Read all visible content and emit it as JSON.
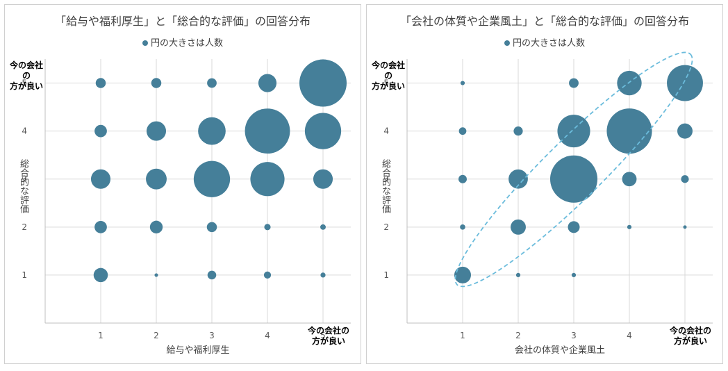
{
  "colors": {
    "bubble": "#457f99",
    "grid": "#d9d9d9",
    "axis": "#bfbfbf",
    "ellipse": "#6bbcdc"
  },
  "chart_data": [
    {
      "type": "scatter",
      "title": "「給与や福利厚生」と「総合的な評価」の回答分布",
      "legend": {
        "label": "円の大きさは人数",
        "position": "top"
      },
      "xlabel": "給与や福利厚生",
      "ylabel": "総合的な評価",
      "x_end_label": [
        "今の会社の",
        "方が良い"
      ],
      "y_end_label": [
        "今の会社の",
        "方が良い"
      ],
      "xlim": [
        0,
        5.5
      ],
      "ylim": [
        0,
        5.5
      ],
      "xticks": [
        1,
        2,
        3,
        4,
        5
      ],
      "yticks": [
        1,
        2,
        3,
        4,
        5
      ],
      "grid": true,
      "size_unit": "relative",
      "points": [
        {
          "x": 1,
          "y": 1,
          "size": 4
        },
        {
          "x": 2,
          "y": 1,
          "size": 0.25
        },
        {
          "x": 3,
          "y": 1,
          "size": 1.5
        },
        {
          "x": 4,
          "y": 1,
          "size": 1
        },
        {
          "x": 5,
          "y": 1,
          "size": 0.5
        },
        {
          "x": 1,
          "y": 2,
          "size": 3
        },
        {
          "x": 2,
          "y": 2,
          "size": 3.2
        },
        {
          "x": 3,
          "y": 2,
          "size": 2
        },
        {
          "x": 4,
          "y": 2,
          "size": 0.8
        },
        {
          "x": 5,
          "y": 2,
          "size": 0.6
        },
        {
          "x": 1,
          "y": 3,
          "size": 7.5
        },
        {
          "x": 2,
          "y": 3,
          "size": 8.5
        },
        {
          "x": 3,
          "y": 3,
          "size": 26
        },
        {
          "x": 4,
          "y": 3,
          "size": 23
        },
        {
          "x": 5,
          "y": 3,
          "size": 7.5
        },
        {
          "x": 1,
          "y": 4,
          "size": 3
        },
        {
          "x": 2,
          "y": 4,
          "size": 7.5
        },
        {
          "x": 3,
          "y": 4,
          "size": 15
        },
        {
          "x": 4,
          "y": 4,
          "size": 40
        },
        {
          "x": 5,
          "y": 4,
          "size": 26
        },
        {
          "x": 1,
          "y": 5,
          "size": 2
        },
        {
          "x": 2,
          "y": 5,
          "size": 2
        },
        {
          "x": 3,
          "y": 5,
          "size": 1.8
        },
        {
          "x": 4,
          "y": 5,
          "size": 6.5
        },
        {
          "x": 5,
          "y": 5,
          "size": 44
        }
      ]
    },
    {
      "type": "scatter",
      "title": "「会社の体質や企業風土」と「総合的な評価」の回答分布",
      "legend": {
        "label": "円の大きさは人数",
        "position": "top"
      },
      "xlabel": "会社の体質や企業風土",
      "ylabel": "総合的な評価",
      "x_end_label": [
        "今の会社の",
        "方が良い"
      ],
      "y_end_label": [
        "今の会社の",
        "方が良い"
      ],
      "xlim": [
        0,
        5.5
      ],
      "ylim": [
        0,
        5.5
      ],
      "xticks": [
        1,
        2,
        3,
        4,
        5
      ],
      "yticks": [
        1,
        2,
        3,
        4,
        5
      ],
      "grid": true,
      "size_unit": "relative",
      "annotation": {
        "type": "dashed-ellipse",
        "from": [
          0.9,
          0.8
        ],
        "to": [
          5.1,
          5.6
        ]
      },
      "points": [
        {
          "x": 1,
          "y": 1,
          "size": 6
        },
        {
          "x": 2,
          "y": 1,
          "size": 0.4
        },
        {
          "x": 3,
          "y": 1,
          "size": 0.4
        },
        {
          "x": 1,
          "y": 2,
          "size": 0.6
        },
        {
          "x": 2,
          "y": 2,
          "size": 5
        },
        {
          "x": 3,
          "y": 2,
          "size": 3
        },
        {
          "x": 4,
          "y": 2,
          "size": 0.4
        },
        {
          "x": 5,
          "y": 2,
          "size": 0.25
        },
        {
          "x": 1,
          "y": 3,
          "size": 1.5
        },
        {
          "x": 2,
          "y": 3,
          "size": 8
        },
        {
          "x": 3,
          "y": 3,
          "size": 48
        },
        {
          "x": 4,
          "y": 3,
          "size": 4.5
        },
        {
          "x": 5,
          "y": 3,
          "size": 1.3
        },
        {
          "x": 1,
          "y": 4,
          "size": 1.2
        },
        {
          "x": 2,
          "y": 4,
          "size": 1.8
        },
        {
          "x": 3,
          "y": 4,
          "size": 23
        },
        {
          "x": 4,
          "y": 4,
          "size": 44
        },
        {
          "x": 5,
          "y": 4,
          "size": 5
        },
        {
          "x": 1,
          "y": 5,
          "size": 0.4
        },
        {
          "x": 3,
          "y": 5,
          "size": 2
        },
        {
          "x": 4,
          "y": 5,
          "size": 13
        },
        {
          "x": 5,
          "y": 5,
          "size": 28
        }
      ]
    }
  ]
}
